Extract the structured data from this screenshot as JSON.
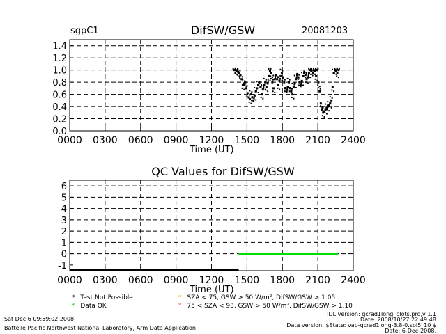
{
  "header": {
    "site": "sgpC1",
    "title": "DifSW/GSW",
    "date": "20081203"
  },
  "qc_title": "QC Values for DifSW/GSW",
  "legend": {
    "not_possible": "Test Not Possible",
    "data_ok": "Data OK",
    "test1": "SZA < 75, GSW > 50 W/m², DifSW/GSW > 1.05",
    "test2": "75 < SZA < 93, GSW > 50 W/m², DifSW/GSW > 1.10",
    "symbol": "*",
    "colors": {
      "not_possible": "#000000",
      "data_ok": "#00dd00",
      "test1": "#ff9900",
      "test2": "#ee0000"
    }
  },
  "footer": {
    "run_date": "Sat Dec  6 09:59:02 2008",
    "lab": "Battelle Pacific Northwest National Laboratory, Arm Data Application",
    "idl_version": "IDL version: qcrad1long_plots.pro,v 1.1",
    "idl_date": "Date: 2008/10/27 22:49:48",
    "data_version": "Data version: $State: vap-qcrad1long-3.8-0.sol5_10 $",
    "data_date": "Date: 6-Dec-2008,"
  },
  "chart_data": [
    {
      "type": "scatter",
      "title": "DifSW/GSW",
      "xlabel": "Time (UT)",
      "ylabel": "",
      "xlim": [
        0,
        24
      ],
      "ylim": [
        0,
        1.5
      ],
      "x_tick_labels": [
        "0000",
        "0300",
        "0600",
        "0900",
        "1200",
        "1500",
        "1800",
        "2100",
        "2400"
      ],
      "y_tick_labels": [
        "0.0",
        "0.2",
        "0.4",
        "0.6",
        "0.8",
        "1.0",
        "1.2",
        "1.4"
      ],
      "grid": true,
      "series": [
        {
          "color": "#000000",
          "x": [
            13.95,
            14.05,
            14.15,
            14.25,
            14.35,
            14.45,
            14.55,
            14.65,
            14.75,
            14.85,
            14.95,
            15.05,
            15.15,
            15.25,
            15.35,
            15.45,
            15.55,
            15.65,
            15.75,
            15.85,
            15.95,
            16.05,
            16.15,
            16.25,
            16.35,
            16.45,
            16.55,
            16.65,
            16.75,
            16.85,
            16.95,
            17.05,
            17.15,
            17.25,
            17.35,
            17.45,
            17.55,
            17.65,
            17.75,
            17.85,
            17.95,
            18.05,
            18.15,
            18.25,
            18.35,
            18.45,
            18.55,
            18.65,
            18.75,
            18.85,
            18.95,
            19.05,
            19.15,
            19.25,
            19.35,
            19.45,
            19.55,
            19.65,
            19.75,
            19.85,
            19.95,
            20.05,
            20.15,
            20.25,
            20.35,
            20.45,
            20.55,
            20.65,
            20.75,
            20.85,
            20.95,
            21.05,
            21.15,
            21.25,
            21.35,
            21.45,
            21.55,
            21.65,
            21.75,
            21.85,
            21.95,
            22.05,
            22.15,
            22.25,
            22.35,
            22.45,
            22.55,
            22.65,
            22.75
          ],
          "y": [
            1.0,
            1.0,
            0.99,
            0.97,
            0.95,
            0.92,
            0.85,
            0.75,
            0.78,
            0.8,
            0.7,
            0.62,
            0.55,
            0.52,
            0.6,
            0.55,
            0.5,
            0.58,
            0.65,
            0.7,
            0.75,
            0.8,
            0.72,
            0.6,
            0.68,
            0.75,
            0.8,
            0.72,
            0.78,
            0.9,
            0.98,
            0.95,
            0.8,
            0.7,
            0.85,
            0.92,
            0.85,
            0.75,
            0.82,
            0.9,
            0.95,
            0.88,
            0.8,
            0.7,
            0.65,
            0.72,
            0.8,
            0.7,
            0.65,
            0.6,
            0.72,
            0.78,
            0.85,
            0.92,
            0.88,
            0.8,
            0.75,
            0.82,
            0.9,
            0.95,
            0.92,
            0.85,
            0.88,
            0.95,
            1.0,
            0.98,
            0.95,
            1.0,
            0.98,
            0.9,
            1.0,
            0.8,
            0.65,
            0.45,
            0.35,
            0.3,
            0.32,
            0.35,
            0.38,
            0.4,
            0.42,
            0.45,
            0.5,
            0.72,
            0.95,
            1.0,
            0.98,
            0.95,
            1.0
          ]
        }
      ]
    },
    {
      "type": "scatter",
      "title": "QC Values for DifSW/GSW",
      "xlabel": "Time (UT)",
      "ylabel": "",
      "xlim": [
        0,
        24
      ],
      "ylim": [
        -1.5,
        6.5
      ],
      "x_tick_labels": [
        "0000",
        "0300",
        "0600",
        "0900",
        "1200",
        "1500",
        "1800",
        "2100",
        "2400"
      ],
      "y_tick_labels": [
        "-1",
        "0",
        "1",
        "2",
        "3",
        "4",
        "5",
        "6"
      ],
      "grid": true,
      "series": [
        {
          "name": "Data OK",
          "color": "#00dd00",
          "x_range": [
            14.3,
            22.7
          ],
          "y": 0
        },
        {
          "name": "Test Not Possible",
          "color": "#000000",
          "x_range": [
            0,
            14.3
          ],
          "y": -1.5
        }
      ]
    }
  ]
}
